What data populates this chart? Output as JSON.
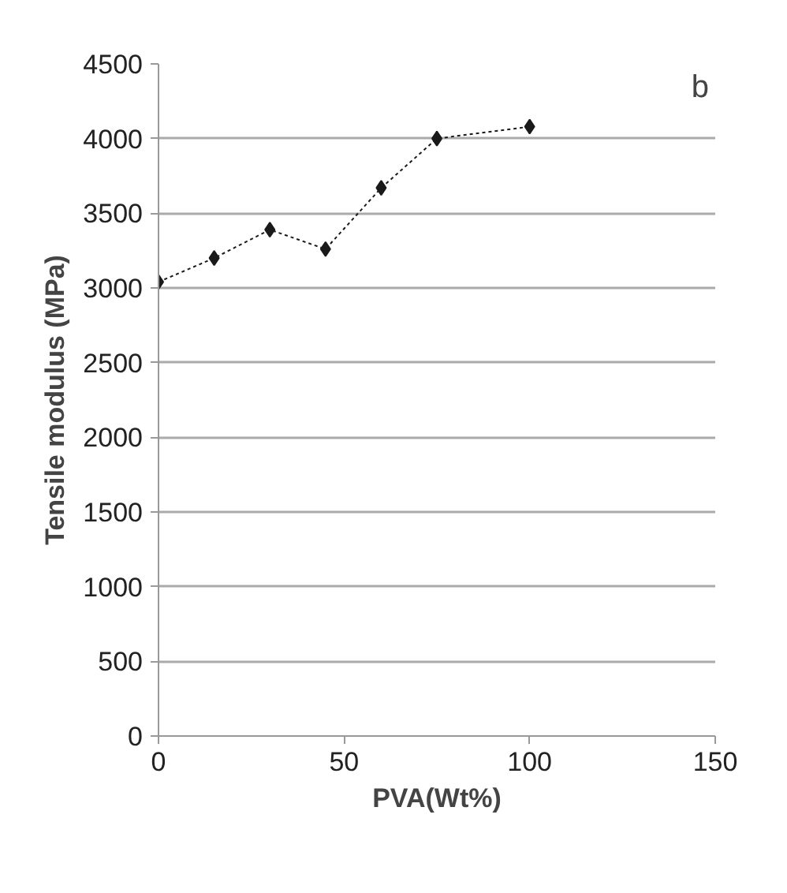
{
  "chart_data": {
    "type": "line",
    "x": [
      0,
      15,
      30,
      45,
      60,
      75,
      100
    ],
    "series": [
      {
        "color": "#1a1a1a",
        "values": [
          3040,
          3200,
          3390,
          3260,
          3670,
          4000,
          4080
        ]
      }
    ],
    "xlabel": "PVA(Wt%)",
    "ylabel": "Tensile modulus (MPa)",
    "xlim": [
      0,
      150
    ],
    "xticks": [
      0,
      50,
      100,
      150
    ],
    "ylim": [
      0,
      4500
    ],
    "yticks": [
      0,
      500,
      1000,
      1500,
      2000,
      2500,
      3000,
      3500,
      4000,
      4500
    ],
    "grid": "y",
    "marker": "diamond",
    "line_style": "dashed",
    "annotations": [
      "b"
    ]
  }
}
